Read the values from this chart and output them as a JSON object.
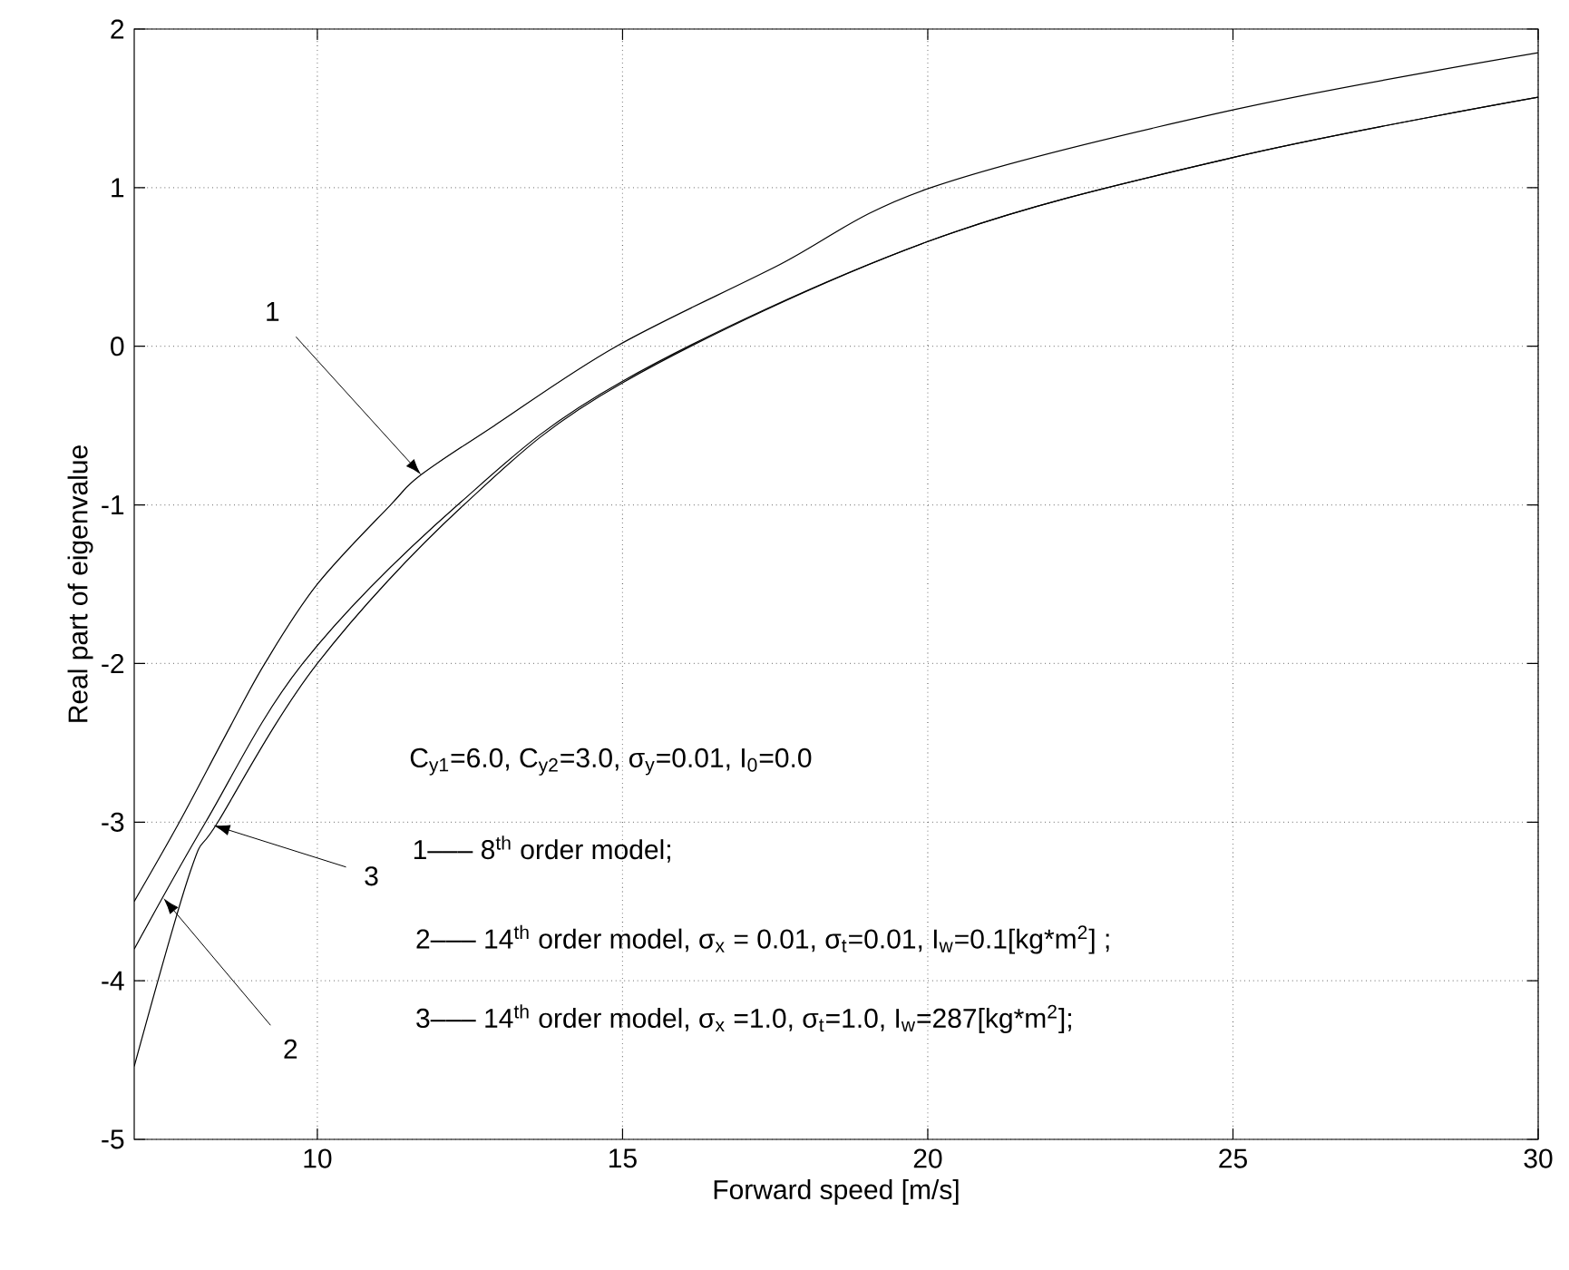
{
  "chart_data": {
    "type": "line",
    "xlabel": "Forward speed [m/s]",
    "ylabel": "Real part of eigenvalue",
    "series": [
      {
        "color": "#000000",
        "x": [
          7,
          7.74,
          8.5,
          9.14,
          10,
          11.2,
          11.7,
          12.9,
          14.9,
          17.5,
          20.05,
          25,
          30
        ],
        "values": [
          -3.5,
          -3,
          -2.45,
          -2,
          -1.5,
          -1,
          -0.81,
          -0.5,
          0,
          0.5,
          1,
          1.49,
          1.85
        ]
      },
      {
        "color": "#000000",
        "x": [
          7,
          8.17,
          9.76,
          12.3,
          15,
          20,
          25,
          30
        ],
        "values": [
          -3.8,
          -3,
          -2,
          -1,
          -0.22,
          0.66,
          1.19,
          1.57
        ]
      },
      {
        "color": "#000000",
        "x": [
          7,
          7.92,
          8.37,
          10,
          12.4,
          15,
          20,
          25,
          30
        ],
        "values": [
          -4.54,
          -3.31,
          -3,
          -2,
          -1,
          -0.23,
          0.66,
          1.19,
          1.57
        ]
      }
    ],
    "xlim": [
      7,
      30
    ],
    "ylim": [
      -5,
      2
    ],
    "xticks": [
      10,
      15,
      20,
      25,
      30
    ],
    "yticks": [
      -5,
      -4,
      -3,
      -2,
      -1,
      0,
      1,
      2
    ],
    "grid": true,
    "line_style": "solid",
    "annotations": [
      {
        "text": "1",
        "x": 11.7,
        "y": -0.81
      },
      {
        "text": "3",
        "x": 8.3,
        "y": -3.02
      },
      {
        "text": "2",
        "x": 7.48,
        "y": -3.48
      },
      "C$_{y1}$=6.0, C$_{y2}$=3.0, σ$_{y}$=0.01, I$_{0}$=0.0",
      "1––– 8$^{th}$ order model;",
      "2––– 14$^{th}$ order model, σ$_{x}$ = 0.01, σ$_{t}$=0.01, I$_{w}$=0.1[kg*m$^{2}$] ;",
      "3––– 14$^{th}$ order model, σ$_{x}$ =1.0, σ$_{t}$=1.0, I$_{w}$=287[kg*m$^{2}$];"
    ]
  }
}
